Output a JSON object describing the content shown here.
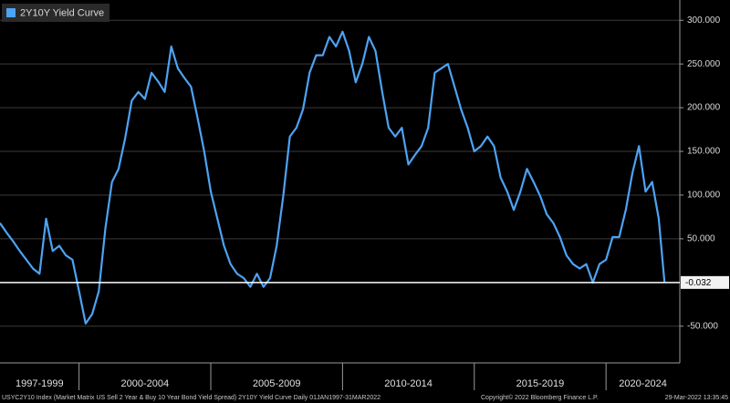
{
  "chart_data": {
    "type": "line",
    "series": [
      {
        "name": "2Y10Y Yield Curve",
        "color": "#4da3f5",
        "x": [
          1997,
          1997.25,
          1997.5,
          1997.75,
          1998,
          1998.25,
          1998.5,
          1998.75,
          1999,
          1999.25,
          1999.5,
          1999.75,
          2000,
          2000.25,
          2000.5,
          2000.75,
          2001,
          2001.25,
          2001.5,
          2001.75,
          2002,
          2002.25,
          2002.5,
          2002.75,
          2003,
          2003.25,
          2003.5,
          2003.75,
          2004,
          2004.25,
          2004.5,
          2004.75,
          2005,
          2005.25,
          2005.5,
          2005.75,
          2006,
          2006.25,
          2006.5,
          2006.75,
          2007,
          2007.25,
          2007.5,
          2007.75,
          2008,
          2008.25,
          2008.5,
          2008.75,
          2009,
          2009.25,
          2009.5,
          2009.75,
          2010,
          2010.25,
          2010.5,
          2010.75,
          2011,
          2011.25,
          2011.5,
          2011.75,
          2012,
          2012.25,
          2012.5,
          2012.75,
          2013,
          2013.25,
          2013.5,
          2013.75,
          2014,
          2014.25,
          2014.5,
          2014.75,
          2015,
          2015.25,
          2015.5,
          2015.75,
          2016,
          2016.25,
          2016.5,
          2016.75,
          2017,
          2017.25,
          2017.5,
          2017.75,
          2018,
          2018.25,
          2018.5,
          2018.75,
          2019,
          2019.25,
          2019.5,
          2019.75,
          2020,
          2020.25,
          2020.5,
          2020.75,
          2021,
          2021.25,
          2021.5,
          2021.75,
          2022,
          2022.22
        ],
        "values": [
          68,
          57,
          47,
          36,
          26,
          16,
          10,
          73,
          36,
          42,
          31,
          26,
          -10,
          -47,
          -36,
          -10,
          62,
          115,
          130,
          165,
          208,
          218,
          210,
          240,
          230,
          218,
          270,
          245,
          234,
          224,
          188,
          150,
          104,
          73,
          42,
          21,
          10,
          5,
          -5,
          10,
          -5,
          5,
          42,
          99,
          167,
          177,
          198,
          240,
          260,
          260,
          281,
          270,
          287,
          265,
          229,
          250,
          281,
          265,
          219,
          177,
          167,
          177,
          135,
          146,
          156,
          177,
          240,
          245,
          250,
          224,
          198,
          177,
          150,
          156,
          167,
          156,
          120,
          104,
          83,
          104,
          130,
          115,
          99,
          78,
          68,
          52,
          31,
          21,
          16,
          21,
          0,
          21,
          26,
          52,
          52,
          83,
          125,
          156,
          104,
          115,
          73,
          -0.032
        ]
      }
    ],
    "xlim": [
      1997,
      2022.8
    ],
    "ylim": [
      -92,
      318
    ],
    "yticks": [
      {
        "value": 300,
        "label": "300.000"
      },
      {
        "value": 250,
        "label": "250.000"
      },
      {
        "value": 200,
        "label": "200.000"
      },
      {
        "value": 150,
        "label": "150.000"
      },
      {
        "value": 100,
        "label": "100.000"
      },
      {
        "value": 50,
        "label": "50.000"
      },
      {
        "value": -50,
        "label": "-50.000"
      }
    ],
    "reference_line": 0,
    "last_value_label": "-0.032",
    "x_dividers": [
      2000,
      2005,
      2010,
      2015,
      2020
    ],
    "x_periods": [
      "1997-1999",
      "2000-2004",
      "2005-2009",
      "2010-2014",
      "2015-2019",
      "2020-2024"
    ],
    "grid": true,
    "footer": {
      "source": "USYC2Y10 Index (Market Matrix US Sell 2 Year & Buy 10 Year Bond Yield Spread) 2Y10Y Yield Curve  Daily 01JAN1997-31MAR2022",
      "copyright": "Copyright© 2022 Bloomberg Finance L.P.",
      "timestamp": "29-Mar-2022 13:35:45"
    }
  }
}
